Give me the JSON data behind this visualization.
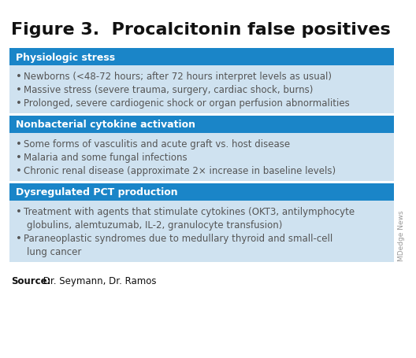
{
  "title": "Figure 3.  Procalcitonin false positives",
  "background_color": "#ffffff",
  "table_bg_light": "#cfe2f0",
  "table_bg_header": "#1a85c8",
  "header_text_color": "#ffffff",
  "body_text_color": "#555555",
  "sections": [
    {
      "header": "Physiologic stress",
      "bullets": [
        "Newborns (<48-72 hours; after 72 hours interpret levels as usual)",
        "Massive stress (severe trauma, surgery, cardiac shock, burns)",
        "Prolonged, severe cardiogenic shock or organ perfusion abnormalities"
      ]
    },
    {
      "header": "Nonbacterial cytokine activation",
      "bullets": [
        "Some forms of vasculitis and acute graft vs. host disease",
        "Malaria and some fungal infections",
        "Chronic renal disease (approximate 2× increase in baseline levels)"
      ]
    },
    {
      "header": "Dysregulated PCT production",
      "bullets": [
        "Treatment with agents that stimulate cytokines (OKT3, antilymphocyte\nglobulins, alemtuzumab, IL-2, granulocyte transfusion)",
        "Paraneoplastic syndromes due to medullary thyroid and small-cell\nlung cancer"
      ]
    }
  ],
  "source_label": "Source:",
  "source_text": " Dr. Seymann, Dr. Ramos",
  "watermark": "MDedge News",
  "title_fontsize": 16,
  "header_fontsize": 9,
  "bullet_fontsize": 8.5,
  "source_fontsize": 8.5,
  "watermark_fontsize": 6.5
}
